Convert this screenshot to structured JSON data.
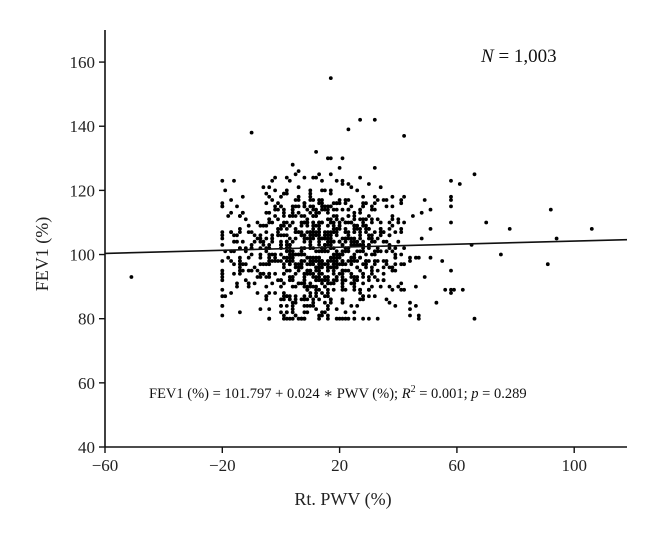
{
  "chart_data": {
    "type": "scatter",
    "xlabel": "Rt. PWV (%)",
    "ylabel": "FEV1 (%)",
    "xlim": [
      -60,
      118
    ],
    "ylim": [
      40,
      170
    ],
    "xticks": [
      "−60",
      "−20",
      "20",
      "60",
      "100"
    ],
    "yticks": [
      "40",
      "60",
      "80",
      "100",
      "120",
      "140",
      "160"
    ],
    "grid": false,
    "n_label_italic": "N",
    "n_label_value": " = 1,003",
    "regression": {
      "intercept": 101.797,
      "slope": 0.024,
      "x_range": [
        -60,
        118
      ]
    },
    "equation": {
      "lhs": "FEV1 (%) = 101.797 + 0.024 ∗ PWV (%); ",
      "r": "R",
      "sup": "2",
      "mid": " = 0.001; ",
      "p": "p",
      "rhs": " = 0.289"
    },
    "notable_points": [
      {
        "x": -51,
        "y": 93
      },
      {
        "x": 17,
        "y": 155
      },
      {
        "x": 106,
        "y": 108
      },
      {
        "x": 92,
        "y": 114
      },
      {
        "x": 94,
        "y": 105
      },
      {
        "x": 91,
        "y": 97
      },
      {
        "x": 66,
        "y": 80
      },
      {
        "x": 78,
        "y": 108
      },
      {
        "x": 75,
        "y": 100
      },
      {
        "x": 70,
        "y": 110
      },
      {
        "x": 66,
        "y": 125
      },
      {
        "x": 62,
        "y": 89
      },
      {
        "x": 59,
        "y": 89
      },
      {
        "x": 65,
        "y": 103
      },
      {
        "x": 61,
        "y": 122
      },
      {
        "x": 27,
        "y": 142
      },
      {
        "x": 32,
        "y": 142
      },
      {
        "x": 23,
        "y": 139
      },
      {
        "x": 42,
        "y": 137
      },
      {
        "x": -10,
        "y": 138
      },
      {
        "x": -19,
        "y": 120
      },
      {
        "x": -17,
        "y": 88
      },
      {
        "x": 47,
        "y": 81
      }
    ],
    "cluster": {
      "count": 980,
      "x_center": 13,
      "x_sd": 15,
      "x_range": [
        -20,
        58
      ],
      "y_center": 101,
      "y_sd": 11,
      "y_range": [
        80,
        138
      ]
    }
  }
}
